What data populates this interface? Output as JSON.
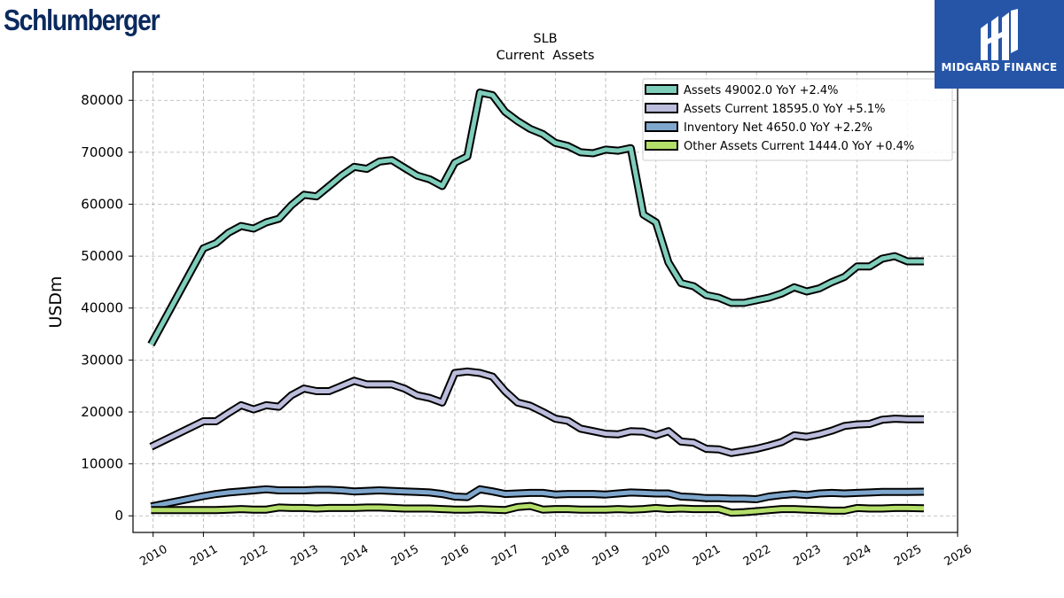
{
  "logo": {
    "company": "Schlumberger",
    "brand": "MIDGARD FINANCE"
  },
  "chart_data": {
    "type": "line",
    "title": "SLB",
    "subtitle": "Current  Assets",
    "xlabel": "",
    "ylabel": "USDm",
    "xlim": [
      2009.6,
      2026.0
    ],
    "ylim": [
      -3200,
      85500
    ],
    "x_ticks": [
      2010,
      2011,
      2012,
      2013,
      2014,
      2015,
      2016,
      2017,
      2018,
      2019,
      2020,
      2021,
      2022,
      2023,
      2024,
      2025,
      2026
    ],
    "y_ticks": [
      0,
      10000,
      20000,
      30000,
      40000,
      50000,
      60000,
      70000,
      80000
    ],
    "grid": true,
    "legend_position": "top-right",
    "x": [
      2009.96,
      2011.0,
      2011.25,
      2011.5,
      2011.75,
      2012.0,
      2012.25,
      2012.5,
      2012.75,
      2013.0,
      2013.25,
      2013.5,
      2013.75,
      2014.0,
      2014.25,
      2014.5,
      2014.75,
      2015.0,
      2015.25,
      2015.5,
      2015.75,
      2016.0,
      2016.25,
      2016.5,
      2016.75,
      2017.0,
      2017.25,
      2017.5,
      2017.75,
      2018.0,
      2018.25,
      2018.5,
      2018.75,
      2019.0,
      2019.25,
      2019.5,
      2019.75,
      2020.0,
      2020.25,
      2020.5,
      2020.75,
      2021.0,
      2021.25,
      2021.5,
      2021.75,
      2022.0,
      2022.25,
      2022.5,
      2022.75,
      2023.0,
      2023.25,
      2023.5,
      2023.75,
      2024.0,
      2024.25,
      2024.5,
      2024.75,
      2025.0,
      2025.33
    ],
    "series": [
      {
        "name": "Assets  49002.0 YoY +2.4%",
        "color": "#7fcdbb",
        "values": [
          33000,
          51500,
          52500,
          54500,
          55800,
          55300,
          56500,
          57200,
          59800,
          61800,
          61500,
          63500,
          65500,
          67200,
          66800,
          68200,
          68500,
          67000,
          65500,
          64800,
          63500,
          68000,
          69200,
          81500,
          81000,
          77800,
          76000,
          74500,
          73500,
          71800,
          71200,
          70000,
          69800,
          70500,
          70300,
          70800,
          58000,
          56500,
          48800,
          44800,
          44200,
          42500,
          42000,
          41000,
          41000,
          41500,
          42000,
          42800,
          44000,
          43200,
          43800,
          45000,
          46000,
          48000,
          48000,
          49500,
          50000,
          49000,
          49000
        ]
      },
      {
        "name": "Assets Current  18595.0 YoY +5.1%",
        "color": "#bcbddc",
        "values": [
          13300,
          18200,
          18200,
          19800,
          21300,
          20500,
          21300,
          21000,
          23200,
          24500,
          24000,
          24000,
          25000,
          26000,
          25300,
          25300,
          25300,
          24500,
          23200,
          22700,
          21800,
          27500,
          27800,
          27500,
          26800,
          24000,
          21800,
          21200,
          20000,
          18700,
          18300,
          16800,
          16300,
          15800,
          15700,
          16300,
          16200,
          15500,
          16300,
          14300,
          14100,
          12900,
          12800,
          12100,
          12500,
          12900,
          13500,
          14200,
          15500,
          15200,
          15700,
          16400,
          17300,
          17600,
          17700,
          18500,
          18700,
          18600,
          18600
        ]
      },
      {
        "name": "Inventory Net  4650.0 YoY +2.2%",
        "color": "#7fa7cd",
        "values": [
          1800,
          3800,
          4200,
          4500,
          4700,
          4900,
          5100,
          4900,
          4900,
          4900,
          5000,
          5000,
          4900,
          4700,
          4800,
          4900,
          4800,
          4700,
          4600,
          4500,
          4200,
          3700,
          3600,
          5100,
          4700,
          4200,
          4300,
          4400,
          4400,
          4100,
          4200,
          4200,
          4200,
          4100,
          4300,
          4500,
          4400,
          4300,
          4300,
          3700,
          3600,
          3400,
          3400,
          3300,
          3300,
          3200,
          3700,
          4000,
          4200,
          4000,
          4300,
          4400,
          4300,
          4400,
          4500,
          4600,
          4600,
          4600,
          4650
        ]
      },
      {
        "name": "Other Assets Current  1444.0 YoY +0.4%",
        "color": "#b3de69",
        "values": [
          1100,
          1100,
          1100,
          1200,
          1300,
          1200,
          1200,
          1600,
          1500,
          1500,
          1400,
          1500,
          1500,
          1500,
          1600,
          1600,
          1500,
          1400,
          1400,
          1400,
          1300,
          1200,
          1200,
          1300,
          1200,
          1100,
          1700,
          1900,
          1200,
          1300,
          1300,
          1200,
          1200,
          1200,
          1300,
          1200,
          1300,
          1500,
          1300,
          1400,
          1300,
          1300,
          1300,
          600,
          700,
          900,
          1100,
          1300,
          1300,
          1200,
          1100,
          1000,
          1000,
          1500,
          1400,
          1400,
          1500,
          1500,
          1444
        ]
      }
    ]
  }
}
